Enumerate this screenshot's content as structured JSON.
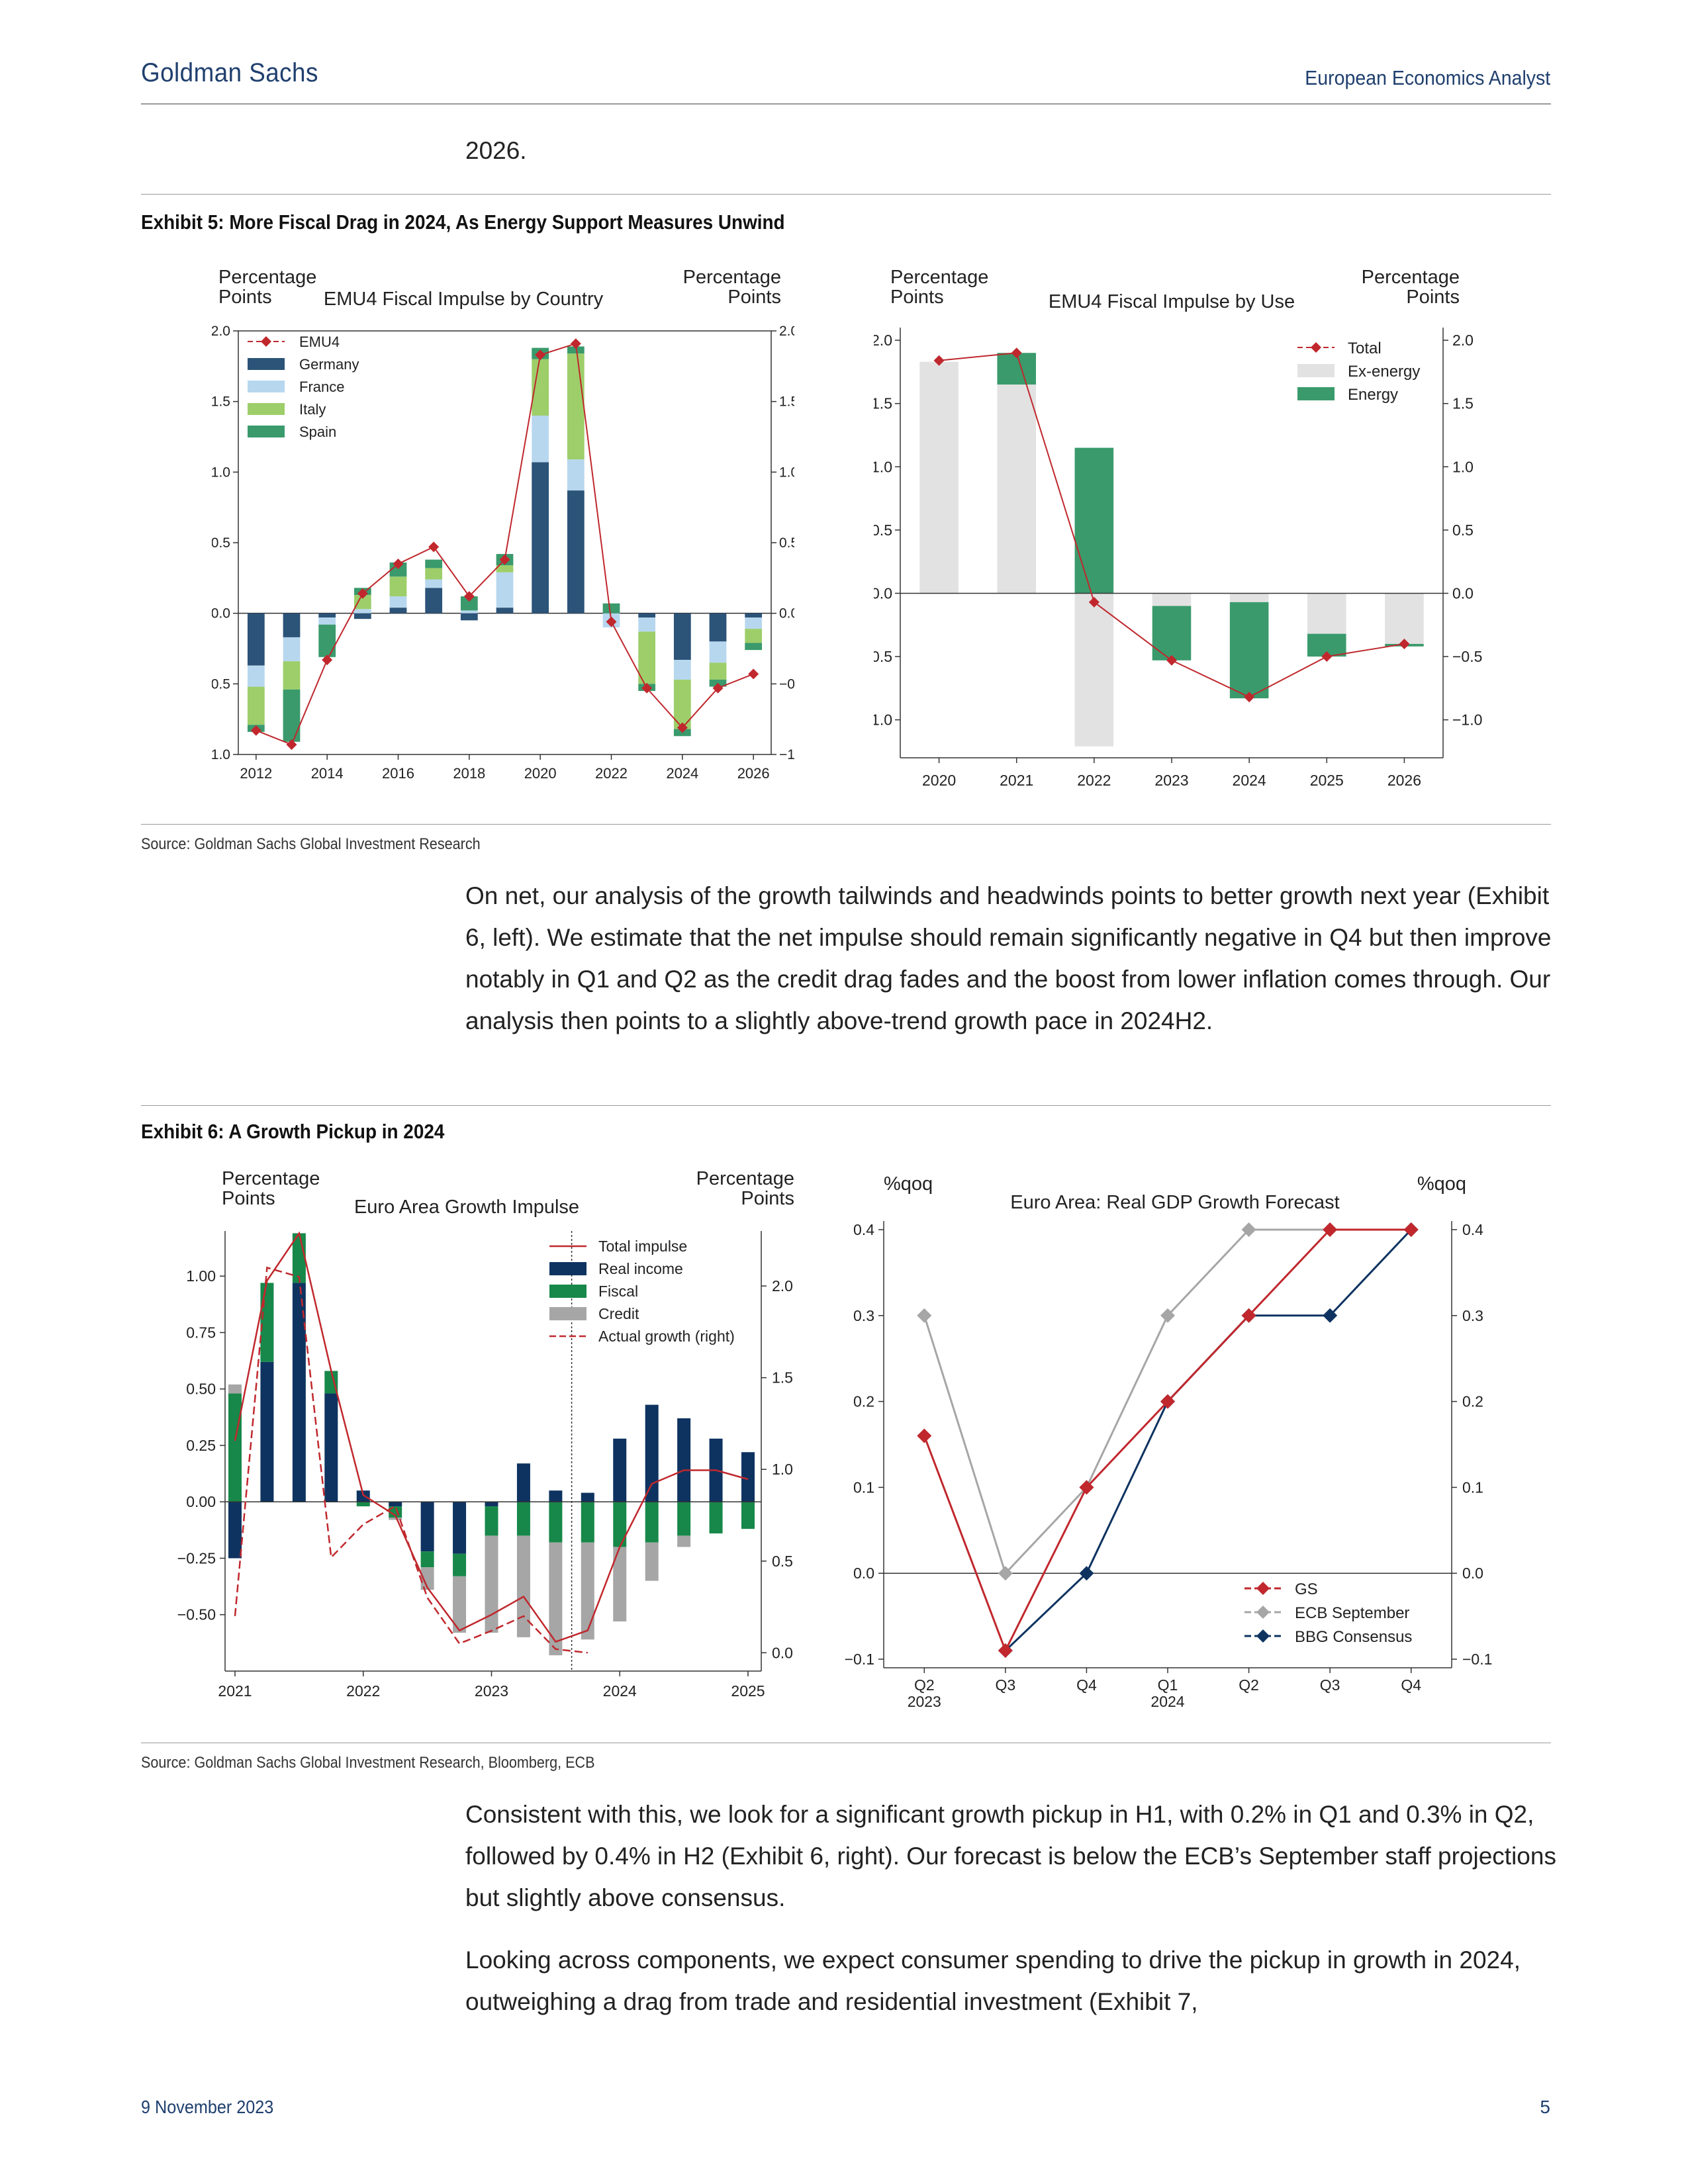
{
  "header": {
    "left": "Goldman Sachs",
    "right": "European Economics Analyst"
  },
  "intro_text": "2026.",
  "exhibit5": {
    "title": "Exhibit 5: More Fiscal Drag in 2024, As Energy Support Measures Unwind",
    "source": "Source: Goldman Sachs Global Investment Research"
  },
  "paragraph1": "On net, our analysis of the growth tailwinds and headwinds points to better growth next year (Exhibit 6, left). We estimate that the net impulse should remain significantly negative in Q4 but then improve notably in Q1 and Q2 as the credit drag fades and the boost from lower inflation comes through. Our analysis then points to a slightly above-trend growth pace in 2024H2.",
  "exhibit6": {
    "title": "Exhibit 6: A Growth Pickup in 2024",
    "source": "Source: Goldman Sachs Global Investment Research, Bloomberg, ECB"
  },
  "paragraph2": "Consistent with this, we look for a significant growth pickup in H1, with 0.2% in Q1 and 0.3% in Q2, followed by 0.4% in H2 (Exhibit 6, right). Our forecast is below the ECB’s September staff projections but slightly above consensus.",
  "paragraph3": "Looking across components, we expect consumer spending to drive the pickup in growth in 2024, outweighing a drag from trade and residential investment (Exhibit 7,",
  "footer": {
    "date": "9 November 2023",
    "page": "5"
  },
  "chart_data": [
    {
      "id": "chart1",
      "type": "bar",
      "title": "EMU4 Fiscal Impulse by Country",
      "ylabel_left": "Percentage Points",
      "ylabel_right": "Percentage Points",
      "ylim": [
        -1.0,
        2.0
      ],
      "yticks": [
        "2.0",
        "1.5",
        "1.0",
        "0.5",
        "0.0",
        "−0.5",
        "−1.0"
      ],
      "xticks": [
        "2012",
        "2014",
        "2016",
        "2018",
        "2020",
        "2022",
        "2024",
        "2026"
      ],
      "categories": [
        "2012",
        "2013",
        "2014",
        "2015",
        "2016",
        "2017",
        "2018",
        "2019",
        "2020",
        "2021",
        "2022",
        "2023",
        "2024",
        "2025",
        "2026"
      ],
      "legend": [
        "EMU4",
        "Germany",
        "France",
        "Italy",
        "Spain"
      ],
      "colors": {
        "EMU4": "#c0282d",
        "Germany": "#2c5378",
        "France": "#b7d7ef",
        "Italy": "#9dce6a",
        "Spain": "#3a9a6c"
      },
      "series": [
        {
          "name": "Germany",
          "values": [
            -0.37,
            -0.17,
            -0.03,
            -0.04,
            0.04,
            0.18,
            -0.05,
            0.04,
            1.07,
            0.87,
            0.0,
            -0.03,
            -0.33,
            -0.2,
            -0.03
          ]
        },
        {
          "name": "France",
          "values": [
            -0.15,
            -0.17,
            -0.05,
            0.03,
            0.08,
            0.06,
            0.02,
            0.25,
            0.33,
            0.22,
            -0.1,
            -0.1,
            -0.14,
            -0.15,
            -0.08
          ]
        },
        {
          "name": "Italy",
          "values": [
            -0.27,
            -0.2,
            0.0,
            0.1,
            0.14,
            0.08,
            0.0,
            0.05,
            0.4,
            0.75,
            0.0,
            -0.37,
            -0.35,
            -0.12,
            -0.1
          ]
        },
        {
          "name": "Spain",
          "values": [
            -0.05,
            -0.37,
            -0.23,
            0.05,
            0.1,
            0.06,
            0.1,
            0.08,
            0.08,
            0.05,
            0.07,
            -0.05,
            -0.05,
            -0.05,
            -0.05
          ]
        },
        {
          "name": "EMU4",
          "values": [
            -0.83,
            -0.93,
            -0.33,
            0.14,
            0.35,
            0.47,
            0.12,
            0.38,
            1.83,
            1.91,
            -0.06,
            -0.53,
            -0.81,
            -0.53,
            -0.43
          ]
        }
      ]
    },
    {
      "id": "chart2",
      "type": "bar",
      "title": "EMU4 Fiscal Impulse by Use",
      "ylabel_left": "Percentage Points",
      "ylabel_right": "Percentage Points",
      "ylim": [
        -1.3,
        2.1
      ],
      "yticks": [
        "2.0",
        "1.5",
        "1.0",
        "0.5",
        "0.0",
        "−0.5",
        "−1.0"
      ],
      "categories": [
        "2020",
        "2021",
        "2022",
        "2023",
        "2024",
        "2025",
        "2026"
      ],
      "legend": [
        "Total",
        "Ex-energy",
        "Energy"
      ],
      "colors": {
        "Total": "#c0282d",
        "Ex-energy": "#e2e2e2",
        "Energy": "#3a9a6c"
      },
      "series": [
        {
          "name": "Ex-energy",
          "values": [
            1.83,
            1.65,
            -1.21,
            -0.1,
            -0.07,
            -0.32,
            -0.4
          ]
        },
        {
          "name": "Energy",
          "values": [
            0.0,
            0.25,
            1.15,
            -0.43,
            -0.76,
            -0.18,
            -0.02
          ]
        },
        {
          "name": "Total",
          "values": [
            1.84,
            1.9,
            -0.07,
            -0.53,
            -0.82,
            -0.5,
            -0.4
          ]
        }
      ]
    },
    {
      "id": "chart3",
      "type": "bar",
      "title": "Euro Area Growth Impulse",
      "ylabel_left": "Percentage Points",
      "ylabel_right": "Percentage Points",
      "ylim_left": [
        -0.75,
        1.2
      ],
      "ylim_right": [
        -0.1,
        2.3
      ],
      "yticks_left": [
        "1.00",
        "0.75",
        "0.50",
        "0.25",
        "0.00",
        "−0.25",
        "−0.50"
      ],
      "yticks_right": [
        "2.0",
        "1.5",
        "1.0",
        "0.5",
        "0.0"
      ],
      "xticks": [
        "2021",
        "2022",
        "2023",
        "2024",
        "2025"
      ],
      "legend": [
        "Total impulse",
        "Real income",
        "Fiscal",
        "Credit",
        "Actual growth (right)"
      ],
      "colors": {
        "Total impulse": "#c0282d",
        "Real income": "#0e3360",
        "Fiscal": "#17884a",
        "Credit": "#a6a6a6",
        "Actual growth (right)": "#c0282d"
      },
      "series": [
        {
          "name": "Real income",
          "values": [
            -0.25,
            0.62,
            0.97,
            0.48,
            0.05,
            -0.02,
            -0.22,
            -0.23,
            -0.02,
            0.17,
            0.05,
            0.04,
            0.28,
            0.43,
            0.37,
            0.28,
            0.22
          ]
        },
        {
          "name": "Fiscal",
          "values": [
            0.48,
            0.35,
            0.22,
            0.1,
            -0.02,
            -0.05,
            -0.07,
            -0.1,
            -0.13,
            -0.15,
            -0.18,
            -0.18,
            -0.2,
            -0.18,
            -0.15,
            -0.14,
            -0.12
          ]
        },
        {
          "name": "Credit",
          "values": [
            0.04,
            0.0,
            0.0,
            0.0,
            0.0,
            -0.01,
            -0.1,
            -0.25,
            -0.43,
            -0.45,
            -0.5,
            -0.43,
            -0.33,
            -0.17,
            -0.05,
            0.0,
            0.0
          ]
        },
        {
          "name": "Total impulse",
          "values": [
            0.27,
            0.98,
            1.19,
            0.58,
            0.03,
            -0.06,
            -0.38,
            -0.57,
            -0.5,
            -0.42,
            -0.62,
            -0.57,
            -0.2,
            0.08,
            0.14,
            0.14,
            0.1
          ]
        },
        {
          "name": "Actual growth (right)",
          "values": [
            0.2,
            2.1,
            2.05,
            0.52,
            0.7,
            0.8,
            0.3,
            0.05,
            0.12,
            0.2,
            0.02,
            0.0
          ]
        }
      ]
    },
    {
      "id": "chart4",
      "type": "line",
      "title": "Euro Area: Real GDP Growth Forecast",
      "ylabel_left": "%qoq",
      "ylabel_right": "%qoq",
      "ylim": [
        -0.11,
        0.41
      ],
      "yticks": [
        "0.4",
        "0.3",
        "0.2",
        "0.1",
        "0.0",
        "−0.1"
      ],
      "x": [
        "Q2\n2023",
        "Q3",
        "Q4",
        "Q1\n2024",
        "Q2",
        "Q3",
        "Q4"
      ],
      "legend": [
        "GS",
        "ECB September",
        "BBG Consensus"
      ],
      "colors": {
        "GS": "#c0282d",
        "ECB September": "#a6a6a6",
        "BBG Consensus": "#0e3360"
      },
      "series": [
        {
          "name": "GS",
          "values": [
            0.16,
            -0.09,
            0.1,
            0.2,
            0.3,
            0.4,
            0.4
          ]
        },
        {
          "name": "ECB September",
          "values": [
            0.3,
            0.0,
            0.1,
            0.3,
            0.4,
            0.4,
            0.4
          ]
        },
        {
          "name": "BBG Consensus",
          "values": [
            null,
            -0.09,
            0.0,
            0.2,
            0.3,
            0.3,
            0.4
          ]
        }
      ]
    }
  ]
}
